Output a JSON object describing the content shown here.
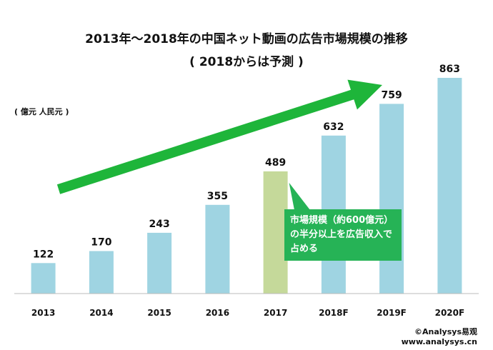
{
  "title_line1": "2013年～2018年の中国ネット動画の広告市場規模の推移",
  "title_line2": "( 2018からは予測 )",
  "unit_label": "( 億元 人民元 )",
  "callout_text": "市場規模（約600億元）の半分以上を広告収入で占める",
  "credit_line1": "©Analysys易观",
  "credit_line2": "www.analysys.cn",
  "colors": {
    "bar": "#9fd4e2",
    "highlight_bar": "#c5d99a",
    "arrow": "#1eb53a",
    "callout": "#26b356"
  },
  "chart_data": {
    "type": "bar",
    "title": "2013年～2018年の中国ネット動画の広告市場規模の推移",
    "subtitle": "( 2018からは予測 )",
    "ylabel": "( 億元 人民元 )",
    "categories": [
      "2013",
      "2014",
      "2015",
      "2016",
      "2017",
      "2018F",
      "2019F",
      "2020F"
    ],
    "values": [
      122,
      170,
      243,
      355,
      489,
      632,
      759,
      863
    ],
    "highlight_index": 4,
    "ylim": [
      0,
      900
    ],
    "grid": false,
    "legend": "none",
    "data_labels": true
  }
}
